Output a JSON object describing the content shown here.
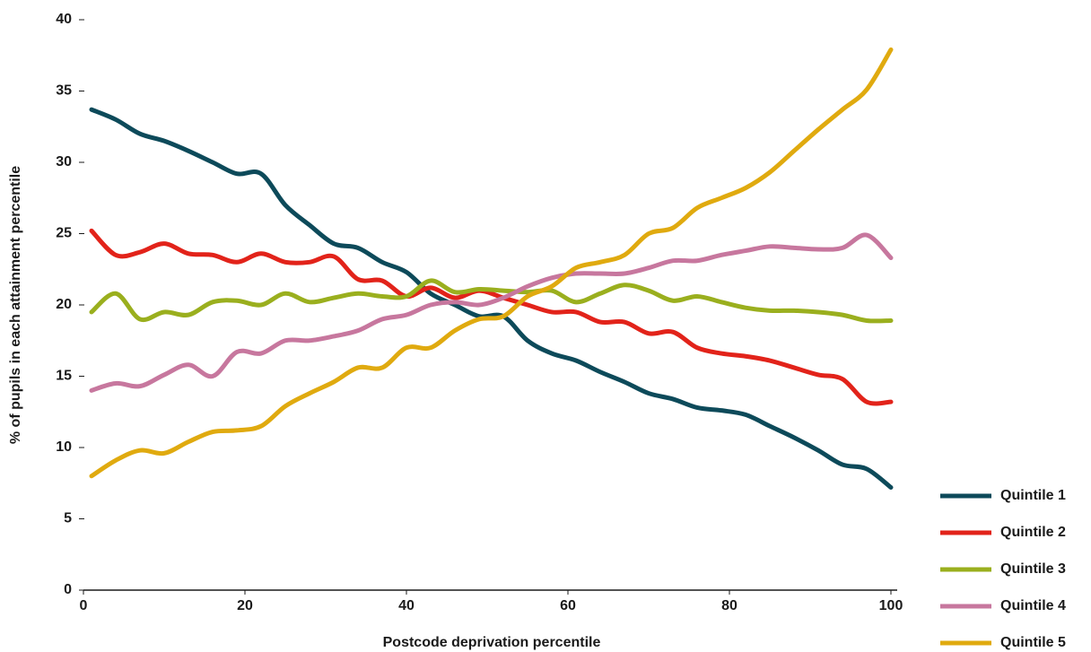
{
  "chart_data": {
    "type": "line",
    "x_label": "Postcode deprivation percentile",
    "y_label": "% of pupils in each attainment percentile",
    "x": [
      1,
      4,
      7,
      10,
      13,
      16,
      19,
      22,
      25,
      28,
      31,
      34,
      37,
      40,
      43,
      46,
      49,
      52,
      55,
      58,
      61,
      64,
      67,
      70,
      73,
      76,
      79,
      82,
      85,
      88,
      91,
      94,
      97,
      100
    ],
    "series": [
      {
        "name": "Quintile 1",
        "color": "#0d4a5a",
        "values": [
          33.7,
          33,
          32,
          31.5,
          30.8,
          30,
          29.2,
          29.2,
          27,
          25.6,
          24.3,
          24,
          23,
          22.3,
          20.8,
          20,
          19.2,
          19.2,
          17.5,
          16.6,
          16.1,
          15.3,
          14.6,
          13.8,
          13.4,
          12.8,
          12.6,
          12.3,
          11.5,
          10.7,
          9.8,
          8.8,
          8.5,
          7.2
        ]
      },
      {
        "name": "Quintile 2",
        "color": "#e2231a",
        "values": [
          25.2,
          23.5,
          23.7,
          24.3,
          23.6,
          23.5,
          23,
          23.6,
          23,
          23,
          23.4,
          21.8,
          21.7,
          20.6,
          21.2,
          20.5,
          21,
          20.5,
          20,
          19.5,
          19.5,
          18.8,
          18.8,
          18,
          18.1,
          17,
          16.6,
          16.4,
          16.1,
          15.6,
          15.1,
          14.8,
          13.2,
          13.2
        ]
      },
      {
        "name": "Quintile 3",
        "color": "#9aaf1e",
        "values": [
          19.5,
          20.8,
          19,
          19.5,
          19.3,
          20.2,
          20.3,
          20,
          20.8,
          20.2,
          20.5,
          20.8,
          20.6,
          20.6,
          21.7,
          20.9,
          21.1,
          21,
          20.9,
          21,
          20.2,
          20.8,
          21.4,
          21,
          20.3,
          20.6,
          20.2,
          19.8,
          19.6,
          19.6,
          19.5,
          19.3,
          18.9,
          18.9
        ]
      },
      {
        "name": "Quintile 4",
        "color": "#c7779e",
        "values": [
          14,
          14.5,
          14.3,
          15.1,
          15.8,
          15,
          16.7,
          16.6,
          17.5,
          17.5,
          17.8,
          18.2,
          19,
          19.3,
          20,
          20.2,
          20,
          20.5,
          21.3,
          21.9,
          22.2,
          22.2,
          22.2,
          22.6,
          23.1,
          23.1,
          23.5,
          23.8,
          24.1,
          24,
          23.9,
          24,
          24.9,
          23.3
        ]
      },
      {
        "name": "Quintile 5",
        "color": "#e0aa0f",
        "values": [
          8,
          9.1,
          9.8,
          9.6,
          10.4,
          11.1,
          11.2,
          11.5,
          12.9,
          13.8,
          14.6,
          15.6,
          15.6,
          17,
          17,
          18.2,
          19,
          19.2,
          20.6,
          21.3,
          22.6,
          23,
          23.5,
          25,
          25.4,
          26.8,
          27.5,
          28.2,
          29.3,
          30.8,
          32.3,
          33.7,
          35.1,
          37.9
        ]
      }
    ],
    "xlim": [
      0,
      100
    ],
    "xticks": [
      0,
      20,
      40,
      60,
      80,
      100
    ],
    "ylim": [
      0,
      40
    ],
    "yticks": [
      0,
      5,
      10,
      15,
      20,
      25,
      30,
      35,
      40
    ],
    "legend": "bottom-right"
  }
}
